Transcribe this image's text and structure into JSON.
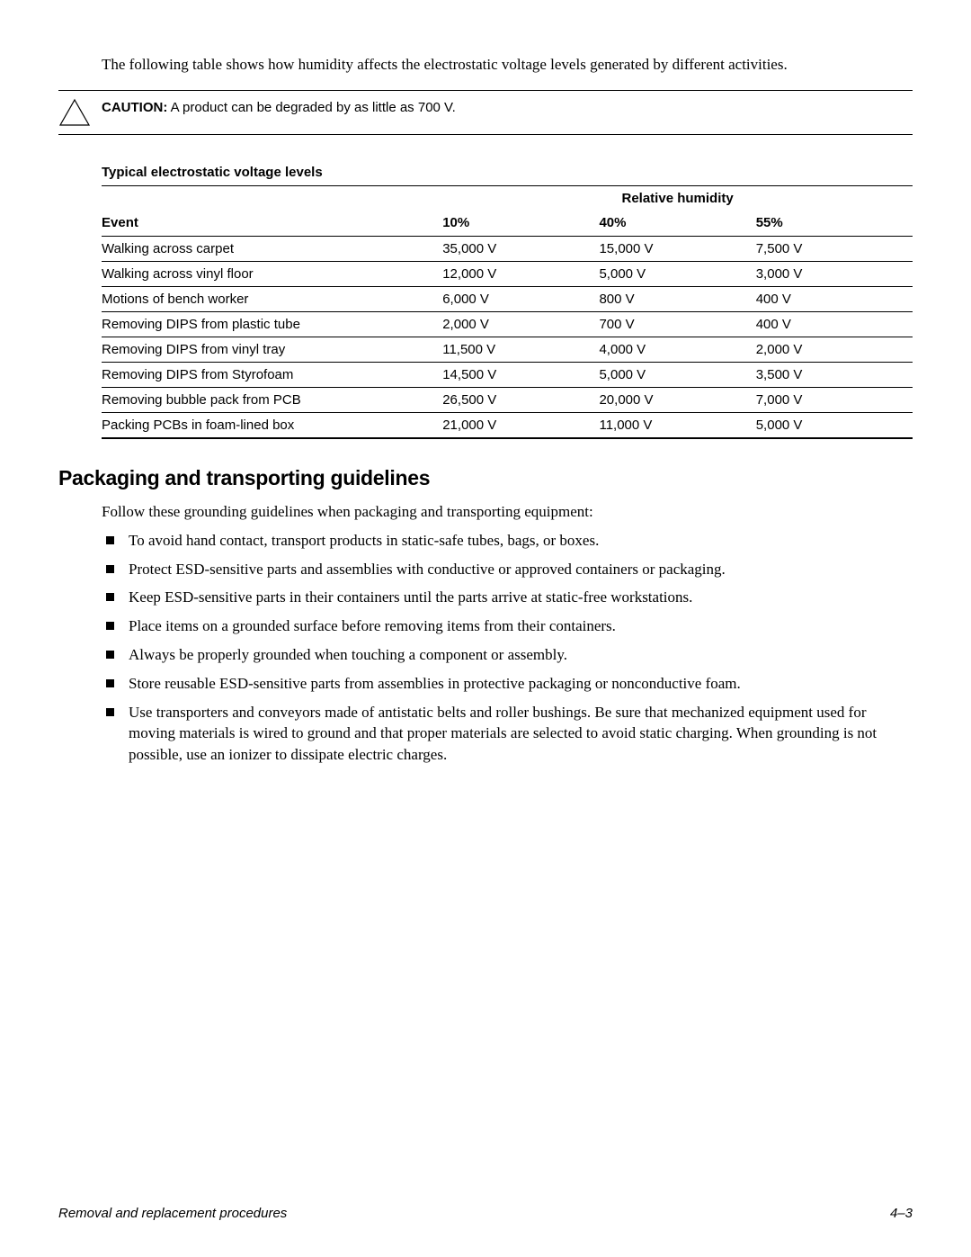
{
  "intro": "The following table shows how humidity affects the electrostatic voltage levels generated by different activities.",
  "caution": {
    "label": "CAUTION:",
    "text": " A product can be degraded by as little as 700 V."
  },
  "table": {
    "title": "Typical electrostatic voltage levels",
    "humidity_header": "Relative humidity",
    "columns": [
      "Event",
      "10%",
      "40%",
      "55%"
    ],
    "rows": [
      [
        "Walking across carpet",
        "35,000 V",
        "15,000 V",
        "7,500 V"
      ],
      [
        "Walking across vinyl floor",
        "12,000 V",
        "5,000 V",
        "3,000 V"
      ],
      [
        "Motions of bench worker",
        "6,000 V",
        "800 V",
        "400 V"
      ],
      [
        "Removing DIPS from plastic tube",
        "2,000 V",
        "700 V",
        "400 V"
      ],
      [
        "Removing DIPS from vinyl tray",
        "11,500 V",
        "4,000 V",
        "2,000 V"
      ],
      [
        "Removing DIPS from Styrofoam",
        "14,500 V",
        "5,000 V",
        "3,500 V"
      ],
      [
        "Removing bubble pack from PCB",
        "26,500 V",
        "20,000 V",
        "7,000 V"
      ],
      [
        "Packing PCBs in foam-lined box",
        "21,000 V",
        "11,000 V",
        "5,000 V"
      ]
    ]
  },
  "section": {
    "heading": "Packaging and transporting guidelines",
    "intro": "Follow these grounding guidelines when packaging and transporting equipment:",
    "bullets": [
      "To avoid hand contact, transport products in static-safe tubes, bags, or boxes.",
      "Protect ESD-sensitive parts and assemblies with conductive or approved containers or packaging.",
      "Keep ESD-sensitive parts in their containers until the parts arrive at static-free workstations.",
      "Place items on a grounded surface before removing items from their containers.",
      "Always be properly grounded when touching a component or assembly.",
      "Store reusable ESD-sensitive parts from assemblies in protective packaging or nonconductive foam.",
      "Use transporters and conveyors made of antistatic belts and roller bushings. Be sure that mechanized equipment used for moving materials is wired to ground and that proper materials are selected to avoid static charging. When grounding is not possible, use an ionizer to dissipate electric charges."
    ]
  },
  "footer": {
    "left": "Removal and replacement procedures",
    "right": "4–3"
  }
}
